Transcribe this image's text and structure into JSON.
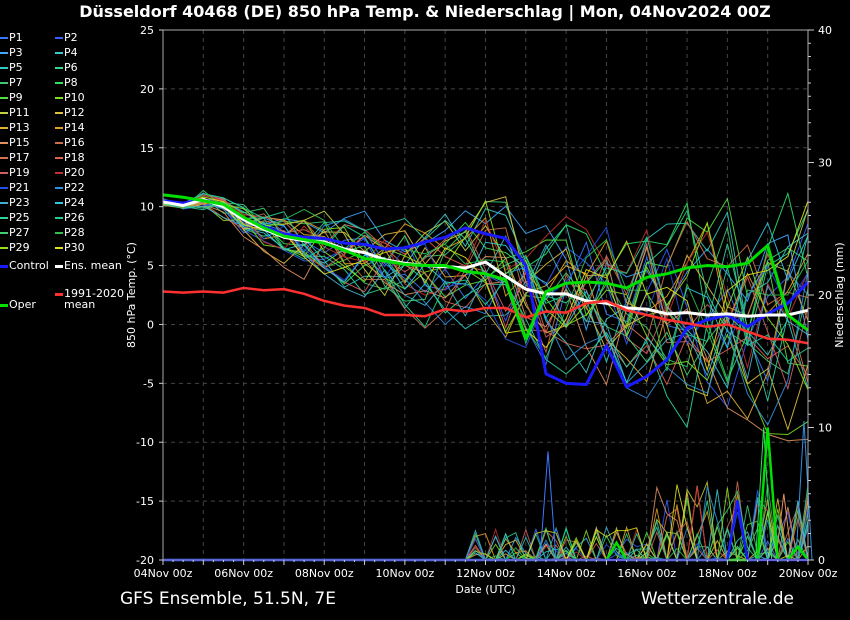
{
  "title": "Düsseldorf 40468 (DE)  850 hPa Temp. & Niederschlag | Mon, 04Nov2024 00Z",
  "footer": {
    "left": "GFS Ensemble, 51.5N, 7E",
    "right": "Wetterzentrale.de"
  },
  "legend": {
    "members": [
      "P1",
      "P2",
      "P3",
      "P4",
      "P5",
      "P6",
      "P7",
      "P8",
      "P9",
      "P10",
      "P11",
      "P12",
      "P13",
      "P14",
      "P15",
      "P16",
      "P17",
      "P18",
      "P19",
      "P20",
      "P21",
      "P22",
      "P23",
      "P24",
      "P25",
      "P26",
      "P27",
      "P28",
      "P29",
      "P30"
    ],
    "member_colors": [
      "#3c78ff",
      "#3c5cff",
      "#40a8ff",
      "#3cc8d0",
      "#30c8c0",
      "#30d890",
      "#40c870",
      "#30e060",
      "#50e040",
      "#80e020",
      "#c0d040",
      "#e0c040",
      "#e0b030",
      "#e0a020",
      "#e09060",
      "#c87050",
      "#d87050",
      "#e06050",
      "#d06060",
      "#c03030",
      "#2050e0",
      "#3090e0",
      "#40b0d0",
      "#30c8e0",
      "#30d0a0",
      "#20d090",
      "#40d070",
      "#30c050",
      "#90e020",
      "#e0e020"
    ],
    "control": "Control",
    "ens_mean": "Ens. mean",
    "climate": "1991-2020\nmean",
    "oper": "Oper"
  },
  "colors": {
    "control": "#1a1aff",
    "ens_mean": "#ffffff",
    "climate": "#ff3030",
    "oper": "#00e000"
  },
  "chart_data": {
    "type": "line",
    "xlabel": "Date (UTC)",
    "ylabel": "850 hPa Temp. (°C)",
    "y2label": "Niederschlag (mm)",
    "x_ticks": [
      "04Nov 00z",
      "06Nov 00z",
      "08Nov 00z",
      "10Nov 00z",
      "12Nov 00z",
      "14Nov 00z",
      "16Nov 00z",
      "18Nov 00z",
      "20Nov 00z"
    ],
    "x_range_days": [
      0,
      16
    ],
    "ylim": [
      -20,
      25
    ],
    "y2lim": [
      0,
      40
    ],
    "y_ticks": [
      -20,
      -15,
      -10,
      -5,
      0,
      5,
      10,
      15,
      20,
      25
    ],
    "y2_ticks": [
      0,
      10,
      20,
      30,
      40
    ],
    "grid": true,
    "x_days": [
      0,
      0.5,
      1,
      1.5,
      2,
      2.5,
      3,
      3.5,
      4,
      4.5,
      5,
      5.5,
      6,
      6.5,
      7,
      7.5,
      8,
      8.5,
      9,
      9.5,
      10,
      10.5,
      11,
      11.5,
      12,
      12.5,
      13,
      13.5,
      14,
      14.5,
      15,
      15.5,
      16
    ],
    "series": [
      {
        "name": "Control",
        "values": [
          10.5,
          10.3,
          10.6,
          10.1,
          9.0,
          8.3,
          7.7,
          7.4,
          7.3,
          6.9,
          6.8,
          6.4,
          6.5,
          7.0,
          7.4,
          8.2,
          7.7,
          7.3,
          5.0,
          -4.2,
          -5.0,
          -5.1,
          -1.8,
          -5.3,
          -4.4,
          -3.0,
          -0.3,
          0.4,
          0.8,
          -0.2,
          0.9,
          1.8,
          3.6
        ]
      },
      {
        "name": "Ens. mean",
        "values": [
          10.4,
          10.1,
          10.6,
          10.0,
          8.9,
          8.1,
          7.4,
          7.1,
          7.0,
          6.4,
          6.1,
          5.5,
          5.2,
          5.0,
          4.9,
          4.8,
          5.3,
          4.1,
          3.0,
          2.6,
          2.6,
          2.0,
          1.8,
          1.4,
          1.3,
          0.9,
          1.0,
          0.8,
          0.9,
          0.7,
          0.8,
          0.8,
          1.2
        ]
      },
      {
        "name": "1991-2020 mean",
        "values": [
          2.8,
          2.7,
          2.8,
          2.7,
          3.1,
          2.9,
          3.0,
          2.6,
          2.0,
          1.6,
          1.4,
          0.8,
          0.8,
          0.7,
          1.3,
          1.1,
          1.4,
          1.4,
          0.6,
          1.1,
          1.0,
          1.8,
          2.0,
          1.2,
          0.8,
          0.4,
          0.1,
          -0.2,
          0.0,
          -0.6,
          -1.2,
          -1.3,
          -1.6
        ]
      },
      {
        "name": "Oper",
        "values": [
          11.0,
          10.8,
          10.5,
          10.2,
          9.1,
          8.2,
          7.5,
          7.2,
          6.9,
          6.3,
          5.6,
          5.4,
          5.1,
          5.0,
          5.0,
          4.5,
          4.3,
          3.8,
          -1.2,
          2.8,
          3.5,
          3.6,
          3.5,
          3.1,
          4.0,
          4.3,
          4.8,
          5.0,
          4.9,
          5.2,
          6.7,
          0.8,
          -0.5
        ]
      }
    ],
    "precip_peaks_mm": [
      {
        "day": 9.55,
        "mm": 8.2
      },
      {
        "day": 14.9,
        "mm": 10.0
      },
      {
        "day": 15.4,
        "mm": 5.0
      },
      {
        "day": 15.9,
        "mm": 10.5
      }
    ]
  }
}
